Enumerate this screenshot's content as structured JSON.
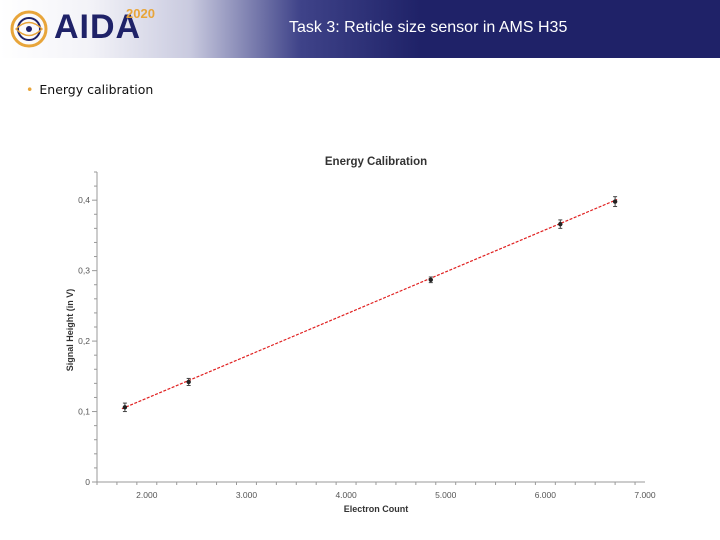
{
  "header": {
    "logo_text": "AIDA",
    "logo_year": "2020",
    "title": "Task 3: Reticle size sensor in AMS H35"
  },
  "bullets": [
    {
      "label": "Energy calibration"
    }
  ],
  "colors": {
    "header_dark": "#1f2268",
    "accent_orange": "#e8a53a",
    "fit_line": "#e02020",
    "points": "#222222"
  },
  "chart_data": {
    "type": "scatter",
    "title": "Energy Calibration",
    "xlabel": "Electron Count",
    "ylabel": "Signal Height (in V)",
    "xlim": [
      1500,
      7000
    ],
    "ylim": [
      0,
      0.44
    ],
    "x_ticks": [
      2000,
      3000,
      4000,
      5000,
      6000,
      7000
    ],
    "x_tick_labels": [
      "2.000",
      "3.000",
      "4.000",
      "5.000",
      "6.000",
      "7.000"
    ],
    "y_ticks": [
      0,
      0.1,
      0.2,
      0.3,
      0.4
    ],
    "y_tick_labels": [
      "0",
      "0,1",
      "0,2",
      "0,3",
      "0,4"
    ],
    "series": [
      {
        "x": [
          1780,
          2420,
          4850,
          6150,
          6700
        ],
        "y": [
          0.106,
          0.142,
          0.287,
          0.366,
          0.398
        ],
        "yerr": [
          0.006,
          0.005,
          0.004,
          0.006,
          0.007
        ]
      }
    ],
    "fit": {
      "type": "linear",
      "x": [
        1750,
        6720
      ],
      "y": [
        0.104,
        0.401
      ]
    },
    "grid": false
  }
}
